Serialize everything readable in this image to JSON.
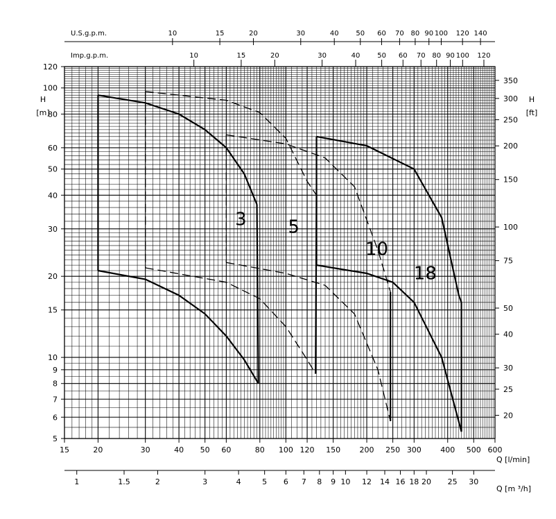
{
  "chart_data": {
    "type": "line",
    "title": "",
    "x_scale": "log",
    "y_scale": "log",
    "grid": true,
    "xlim": [
      15,
      600
    ],
    "ylim": [
      5,
      120
    ],
    "primary_x_axis": {
      "unit_label": "Q [l/min]",
      "ticks": [
        15,
        20,
        30,
        40,
        50,
        60,
        80,
        100,
        120,
        150,
        200,
        250,
        300,
        400,
        500,
        600
      ]
    },
    "secondary_x_axis_m3h": {
      "unit_label": "Q [m ³/h]",
      "ticks": [
        1,
        1.5,
        2,
        3,
        4,
        5,
        6,
        7,
        8,
        9,
        10,
        12,
        14,
        16,
        18,
        20,
        25,
        30
      ]
    },
    "top_axis_us_gpm": {
      "label": "U.S.g.p.m.",
      "ticks": [
        10,
        15,
        20,
        30,
        40,
        50,
        60,
        70,
        80,
        90,
        100,
        120,
        140
      ]
    },
    "top_axis_imp_gpm": {
      "label": "Imp.g.p.m.",
      "ticks": [
        10,
        15,
        20,
        30,
        40,
        50,
        60,
        70,
        80,
        90,
        100,
        120
      ]
    },
    "y_axis_m": {
      "label": "H",
      "unit": "[m]",
      "ticks": [
        5,
        6,
        7,
        8,
        9,
        10,
        15,
        20,
        30,
        40,
        50,
        60,
        80,
        100,
        120
      ]
    },
    "y_axis_ft": {
      "label": "H",
      "unit": "[ft]",
      "ticks": [
        20,
        25,
        30,
        40,
        50,
        75,
        100,
        150,
        200,
        250,
        300,
        350
      ]
    },
    "series": [
      {
        "name": "3",
        "upper_curve": [
          [
            20,
            94
          ],
          [
            30,
            88
          ],
          [
            40,
            80
          ],
          [
            50,
            70
          ],
          [
            60,
            60
          ],
          [
            70,
            48
          ],
          [
            78,
            37
          ]
        ],
        "lower_curve": [
          [
            20,
            21
          ],
          [
            30,
            19.5
          ],
          [
            40,
            17
          ],
          [
            50,
            14.5
          ],
          [
            60,
            12
          ],
          [
            70,
            9.8
          ],
          [
            79,
            8
          ]
        ],
        "min_flow_l_min": 20,
        "max_flow_l_min": 80
      },
      {
        "name": "5",
        "upper_curve": [
          [
            30,
            97
          ],
          [
            60,
            90
          ],
          [
            80,
            81
          ],
          [
            100,
            65
          ],
          [
            120,
            45
          ],
          [
            130,
            40
          ]
        ],
        "lower_curve": [
          [
            30,
            21.5
          ],
          [
            60,
            19
          ],
          [
            80,
            16.5
          ],
          [
            100,
            13
          ],
          [
            120,
            9.8
          ],
          [
            129,
            8.7
          ]
        ],
        "min_flow_l_min": 30,
        "max_flow_l_min": 130
      },
      {
        "name": "10",
        "upper_curve": [
          [
            60,
            67
          ],
          [
            100,
            62
          ],
          [
            140,
            55
          ],
          [
            180,
            43
          ],
          [
            220,
            25
          ],
          [
            245,
            17.5
          ]
        ],
        "lower_curve": [
          [
            60,
            22.5
          ],
          [
            100,
            20.5
          ],
          [
            140,
            18.5
          ],
          [
            180,
            14.5
          ],
          [
            220,
            9
          ],
          [
            245,
            5.8
          ]
        ],
        "min_flow_l_min": 60,
        "max_flow_l_min": 250
      },
      {
        "name": "18",
        "upper_curve": [
          [
            130,
            66
          ],
          [
            200,
            61
          ],
          [
            300,
            50
          ],
          [
            380,
            33
          ],
          [
            440,
            17
          ],
          [
            450,
            16
          ]
        ],
        "lower_curve": [
          [
            130,
            22
          ],
          [
            200,
            20.5
          ],
          [
            250,
            19
          ],
          [
            300,
            16
          ],
          [
            380,
            10
          ],
          [
            450,
            5.3
          ]
        ],
        "min_flow_l_min": 130,
        "max_flow_l_min": 450
      }
    ]
  }
}
